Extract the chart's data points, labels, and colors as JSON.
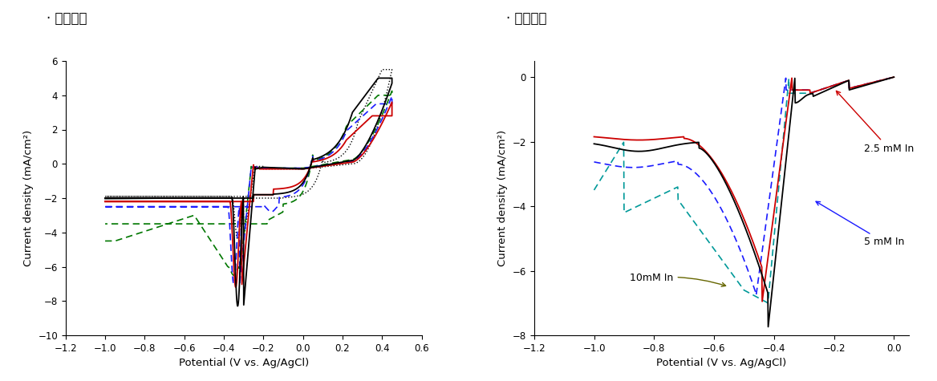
{
  "left_title": "· 전체영역",
  "right_title": "· 환원영역",
  "xlabel": "Potential (V vs. Ag/AgCl)",
  "ylabel": "Current density (mA/cm²)",
  "left_xlim": [
    -1.2,
    0.6
  ],
  "left_ylim": [
    -10,
    6
  ],
  "right_xlim": [
    -1.2,
    0.05
  ],
  "right_ylim": [
    -8,
    0.5
  ],
  "left_xticks": [
    -1.2,
    -1.0,
    -0.8,
    -0.6,
    -0.4,
    -0.2,
    0.0,
    0.2,
    0.4,
    0.6
  ],
  "right_xticks": [
    -1.2,
    -1.0,
    -0.8,
    -0.6,
    -0.4,
    -0.2,
    0.0
  ],
  "left_yticks": [
    -10,
    -8,
    -6,
    -4,
    -2,
    0,
    2,
    4,
    6
  ],
  "right_yticks": [
    -8,
    -6,
    -4,
    -2,
    0
  ],
  "annotation_25mM": "2.5 mM In",
  "annotation_10mM": "10mM In",
  "annotation_5mM": "5 mM In",
  "colors": {
    "black": "#000000",
    "red": "#cc0000",
    "blue": "#1a1aff",
    "green": "#007700",
    "teal": "#009999"
  }
}
